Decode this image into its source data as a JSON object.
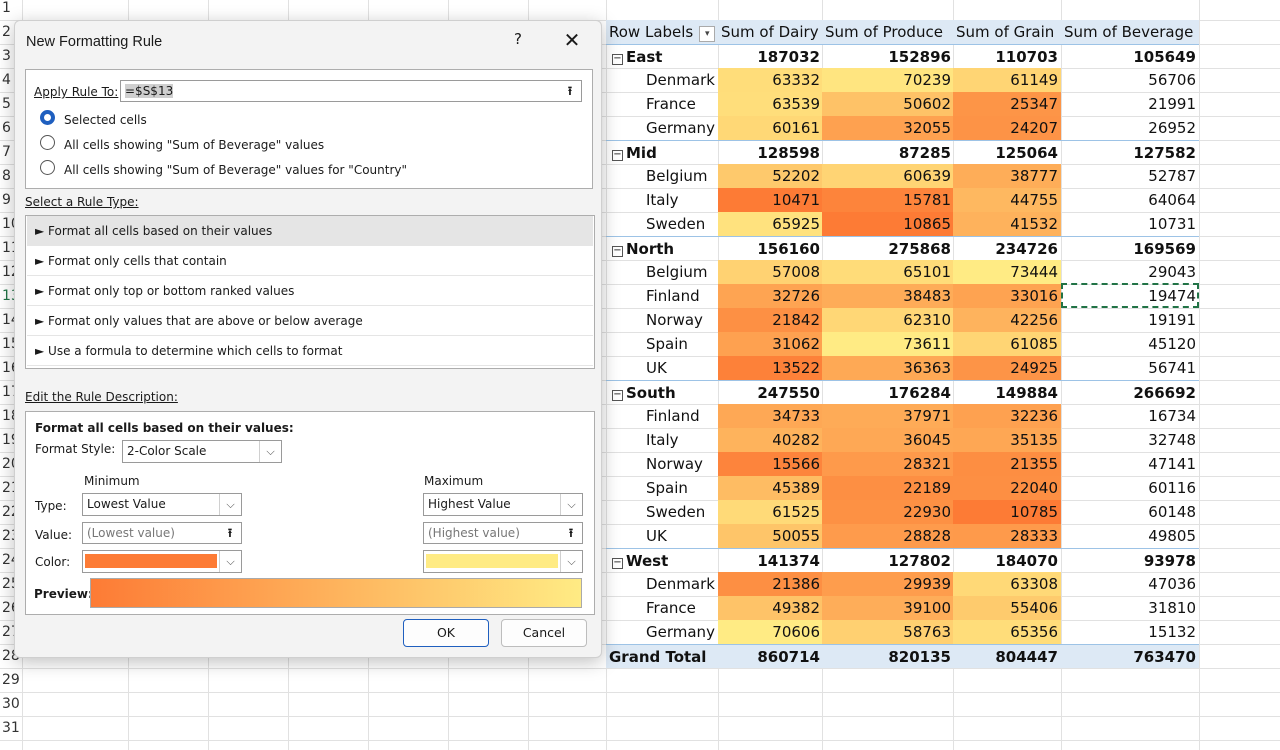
{
  "sheet": {
    "row_numbers": [
      "1",
      "2",
      "3",
      "4",
      "5",
      "6",
      "7",
      "8",
      "9",
      "10",
      "11",
      "12",
      "13",
      "14",
      "15",
      "16",
      "17",
      "18",
      "19",
      "20",
      "21",
      "22",
      "23",
      "24",
      "25",
      "26",
      "27",
      "28",
      "29",
      "30",
      "31"
    ],
    "selected_row": "13",
    "colors": {
      "gridline": "#e1e1e1",
      "selection": "#217346",
      "pivot_header_bg": "#dde9f5",
      "color_min": "#fd7b35",
      "color_max": "#ffeb84"
    }
  },
  "pivot": {
    "headers": [
      "Row Labels",
      "Sum of Dairy",
      "Sum of Produce",
      "Sum of Grain",
      "Sum of Beverage"
    ],
    "rows": [
      {
        "kind": "region",
        "label": "East",
        "values": [
          "187032",
          "152896",
          "110703",
          "105649"
        ]
      },
      {
        "kind": "country",
        "label": "Denmark",
        "values": [
          "63332",
          "70239",
          "61149",
          "56706"
        ]
      },
      {
        "kind": "country",
        "label": "France",
        "values": [
          "63539",
          "50602",
          "25347",
          "21991"
        ]
      },
      {
        "kind": "country",
        "label": "Germany",
        "values": [
          "60161",
          "32055",
          "24207",
          "26952"
        ]
      },
      {
        "kind": "region",
        "label": "Mid",
        "values": [
          "128598",
          "87285",
          "125064",
          "127582"
        ]
      },
      {
        "kind": "country",
        "label": "Belgium",
        "values": [
          "52202",
          "60639",
          "38777",
          "52787"
        ]
      },
      {
        "kind": "country",
        "label": "Italy",
        "values": [
          "10471",
          "15781",
          "44755",
          "64064"
        ]
      },
      {
        "kind": "country",
        "label": "Sweden",
        "values": [
          "65925",
          "10865",
          "41532",
          "10731"
        ]
      },
      {
        "kind": "region",
        "label": "North",
        "values": [
          "156160",
          "275868",
          "234726",
          "169569"
        ]
      },
      {
        "kind": "country",
        "label": "Belgium",
        "values": [
          "57008",
          "65101",
          "73444",
          "29043"
        ]
      },
      {
        "kind": "country",
        "label": "Finland",
        "values": [
          "32726",
          "38483",
          "33016",
          "19474"
        ]
      },
      {
        "kind": "country",
        "label": "Norway",
        "values": [
          "21842",
          "62310",
          "42256",
          "19191"
        ]
      },
      {
        "kind": "country",
        "label": "Spain",
        "values": [
          "31062",
          "73611",
          "61085",
          "45120"
        ]
      },
      {
        "kind": "country",
        "label": "UK",
        "values": [
          "13522",
          "36363",
          "24925",
          "56741"
        ]
      },
      {
        "kind": "region",
        "label": "South",
        "values": [
          "247550",
          "176284",
          "149884",
          "266692"
        ]
      },
      {
        "kind": "country",
        "label": "Finland",
        "values": [
          "34733",
          "37971",
          "32236",
          "16734"
        ]
      },
      {
        "kind": "country",
        "label": "Italy",
        "values": [
          "40282",
          "36045",
          "35135",
          "32748"
        ]
      },
      {
        "kind": "country",
        "label": "Norway",
        "values": [
          "15566",
          "28321",
          "21355",
          "47141"
        ]
      },
      {
        "kind": "country",
        "label": "Spain",
        "values": [
          "45389",
          "22189",
          "22040",
          "60116"
        ]
      },
      {
        "kind": "country",
        "label": "Sweden",
        "values": [
          "61525",
          "22930",
          "10785",
          "60148"
        ]
      },
      {
        "kind": "country",
        "label": "UK",
        "values": [
          "50055",
          "28828",
          "28333",
          "49805"
        ]
      },
      {
        "kind": "region",
        "label": "West",
        "values": [
          "141374",
          "127802",
          "184070",
          "93978"
        ]
      },
      {
        "kind": "country",
        "label": "Denmark",
        "values": [
          "21386",
          "29939",
          "63308",
          "47036"
        ]
      },
      {
        "kind": "country",
        "label": "France",
        "values": [
          "49382",
          "39100",
          "55406",
          "31810"
        ]
      },
      {
        "kind": "country",
        "label": "Germany",
        "values": [
          "70606",
          "58763",
          "65356",
          "15132"
        ]
      },
      {
        "kind": "total",
        "label": "Grand Total",
        "values": [
          "860714",
          "820135",
          "804447",
          "763470"
        ]
      }
    ]
  },
  "dialog": {
    "title": "New Formatting Rule",
    "help": "?",
    "close": "✕",
    "apply_rule_to_label": "Apply Rule To:",
    "apply_rule_to_value": "=$S$13",
    "radios": [
      {
        "label": "Selected cells",
        "selected": true
      },
      {
        "label": "All cells showing \"Sum of Beverage\" values",
        "selected": false
      },
      {
        "label": "All cells showing \"Sum of Beverage\" values for \"Country\"",
        "selected": false
      }
    ],
    "rule_type_label": "Select a Rule Type:",
    "rule_types": [
      "► Format all cells based on their values",
      "► Format only cells that contain",
      "► Format only top or bottom ranked values",
      "► Format only values that are above or below average",
      "► Use a formula to determine which cells to format"
    ],
    "selected_rule_index": 0,
    "edit_description_label": "Edit the Rule Description:",
    "desc_heading": "Format all cells based on their values:",
    "format_style_label": "Format Style:",
    "format_style_value": "2-Color Scale",
    "minimum_label": "Minimum",
    "maximum_label": "Maximum",
    "type_label": "Type:",
    "value_label": "Value:",
    "color_label": "Color:",
    "min_type": "Lowest Value",
    "max_type": "Highest Value",
    "min_value_placeholder": "(Lowest value)",
    "max_value_placeholder": "(Highest value)",
    "min_color": "#fd7b35",
    "max_color": "#ffeb84",
    "preview_label": "Preview:",
    "ok_label": "OK",
    "cancel_label": "Cancel"
  }
}
